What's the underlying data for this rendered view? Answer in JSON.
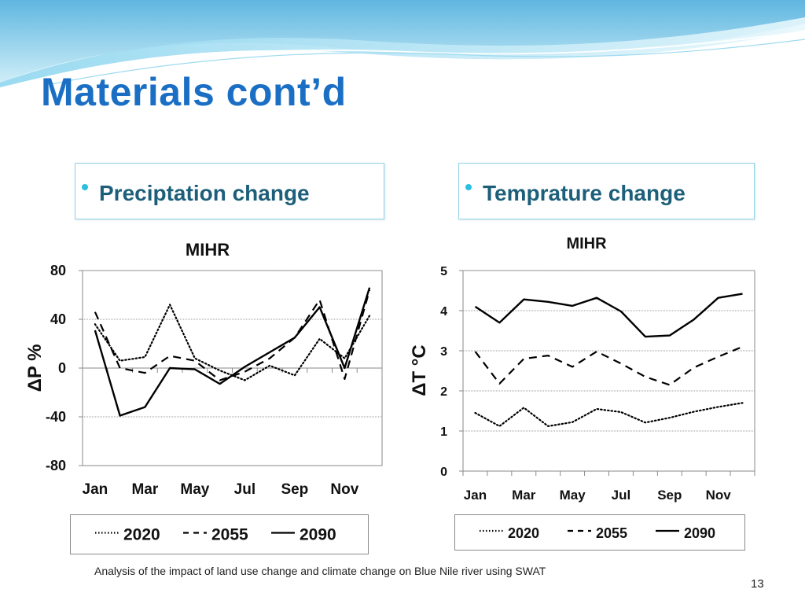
{
  "slide": {
    "title": "Materials cont’d",
    "bullets": [
      "Preciptation change",
      "Temprature change"
    ],
    "footer": "Analysis of the impact of land use change and climate change on Blue Nile river using SWAT",
    "page_number": "13",
    "colors": {
      "title": "#1a6fc4",
      "bullet_text": "#1d5f7a",
      "bullet_dot": "#29bfe0",
      "box_border": "#8fd3e6"
    }
  },
  "chart_data": [
    {
      "type": "line",
      "title": "MIHR",
      "ylabel": "ΔP %",
      "xlabel": "",
      "categories": [
        "Jan",
        "Feb",
        "Mar",
        "Apr",
        "May",
        "Jun",
        "Jul",
        "Aug",
        "Sep",
        "Oct",
        "Nov",
        "Dec"
      ],
      "xtick_labels": [
        "Jan",
        "Mar",
        "May",
        "Jul",
        "Sep",
        "Nov"
      ],
      "ylim": [
        -80,
        80
      ],
      "yticks": [
        -80,
        -40,
        0,
        40,
        80
      ],
      "ytick_labels": [
        "-80",
        "-40",
        "0",
        "40",
        "80"
      ],
      "grid": true,
      "series": [
        {
          "name": "2020",
          "style": "dotted",
          "values": [
            36,
            6,
            9,
            52,
            8,
            -2,
            -10,
            2,
            -6,
            24,
            8,
            43
          ]
        },
        {
          "name": "2055",
          "style": "dashed",
          "values": [
            46,
            0,
            -4,
            10,
            6,
            -10,
            -3,
            8,
            25,
            56,
            -9,
            64
          ]
        },
        {
          "name": "2090",
          "style": "solid",
          "values": [
            31,
            -39,
            -32,
            0,
            -1,
            -13,
            1,
            13,
            25,
            50,
            0,
            66
          ]
        }
      ],
      "legend": "bottom"
    },
    {
      "type": "line",
      "title": "MIHR",
      "ylabel": "ΔT °C",
      "xlabel": "",
      "categories": [
        "Jan",
        "Feb",
        "Mar",
        "Apr",
        "May",
        "Jun",
        "Jul",
        "Aug",
        "Sep",
        "Oct",
        "Nov",
        "Dec"
      ],
      "xtick_labels": [
        "Jan",
        "Mar",
        "May",
        "Jul",
        "Sep",
        "Nov"
      ],
      "ylim": [
        0,
        5
      ],
      "yticks": [
        0,
        1,
        2,
        3,
        4,
        5
      ],
      "ytick_labels": [
        "0",
        "1",
        "2",
        "3",
        "4",
        "5"
      ],
      "grid": true,
      "series": [
        {
          "name": "2020",
          "style": "dotted",
          "values": [
            1.45,
            1.12,
            1.58,
            1.12,
            1.22,
            1.55,
            1.47,
            1.21,
            1.33,
            1.48,
            1.6,
            1.7
          ]
        },
        {
          "name": "2055",
          "style": "dashed",
          "values": [
            2.98,
            2.18,
            2.8,
            2.88,
            2.6,
            2.98,
            2.68,
            2.35,
            2.15,
            2.58,
            2.85,
            3.1
          ]
        },
        {
          "name": "2090",
          "style": "solid",
          "values": [
            4.1,
            3.7,
            4.28,
            4.22,
            4.12,
            4.32,
            3.98,
            3.35,
            3.38,
            3.78,
            4.32,
            4.42
          ]
        }
      ],
      "legend": "bottom"
    }
  ]
}
